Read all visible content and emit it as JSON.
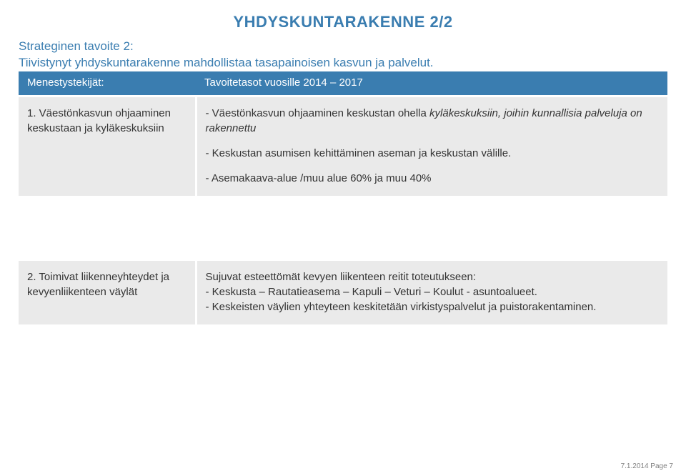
{
  "title": {
    "text": "YHDYSKUNTARAKENNE 2/2",
    "color": "#3a7db0",
    "fontsize": 22
  },
  "intro": {
    "line1": "Strateginen tavoite 2:",
    "line2": "Tiivistynyt yhdyskuntarakenne mahdollistaa tasapainoisen kasvun ja palvelut.",
    "color": "#3a7db0",
    "fontsize": 17
  },
  "table": {
    "header_bg": "#3a7db0",
    "header_color": "#ffffff",
    "body_bg": "#eaeaea",
    "body_color": "#333333",
    "fontsize": 15,
    "headers": {
      "col1": "Menestystekijät:",
      "col2": "Tavoitetasot vuosille 2014 – 2017"
    },
    "row1": {
      "col1": "1. Väestönkasvun ohjaaminen keskustaan ja kyläkeskuksiin",
      "col2_p1a": "- Väestönkasvun ohjaaminen keskustan ohella ",
      "col2_p1_italic": "kyläkeskuksiin, joihin kunnallisia palveluja on rakennettu",
      "col2_p2": "- Keskustan asumisen kehittäminen aseman ja keskustan  välille.",
      "col2_p3": "- Asemakaava-alue /muu alue 60% ja muu 40%"
    },
    "row2": {
      "col1": "2. Toimivat liikenneyhteydet ja kevyenliikenteen väylät",
      "col2_p1": "Sujuvat esteettömät kevyen liikenteen reitit toteutukseen:",
      "col2_p2": "- Keskusta – Rautatieasema – Kapuli – Veturi – Koulut - asuntoalueet.",
      "col2_p3": "- Keskeisten väylien yhteyteen keskitetään virkistyspalvelut ja puistorakentaminen."
    }
  },
  "footer": {
    "text": "7.1.2014  Page 7",
    "color": "#808080",
    "fontsize": 10
  }
}
